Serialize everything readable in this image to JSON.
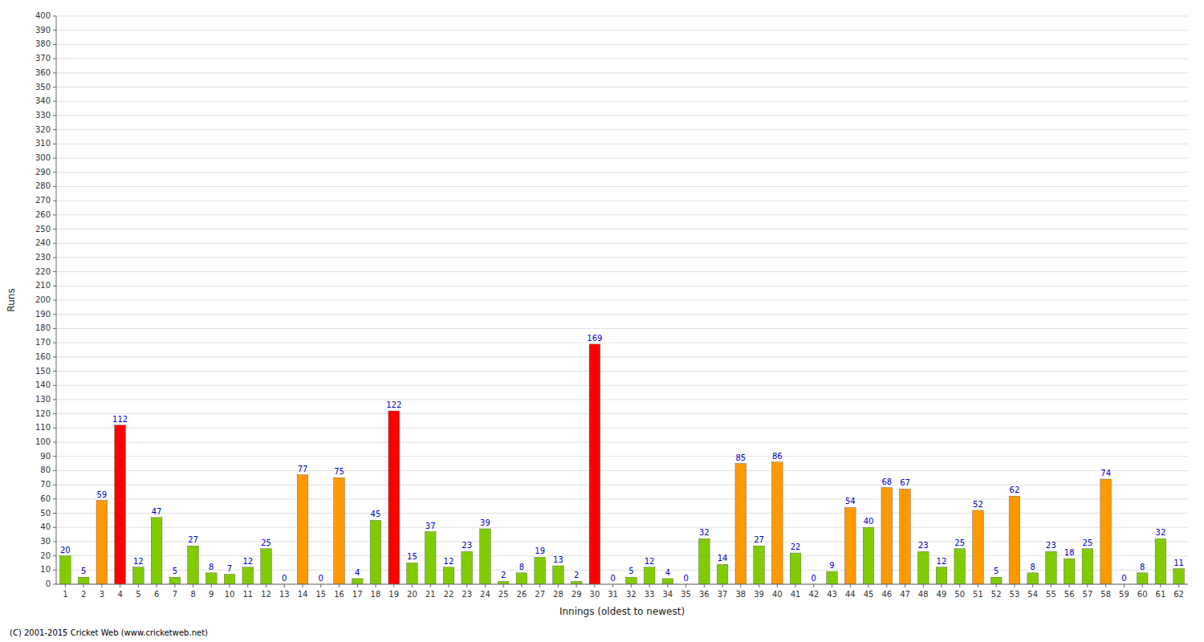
{
  "chart_data": {
    "type": "bar",
    "xlabel": "Innings (oldest to newest)",
    "ylabel": "Runs",
    "annotations": [
      "(C) 2001-2015 Cricket Web (www.cricketweb.net)"
    ],
    "categories": [
      "1",
      "2",
      "3",
      "4",
      "5",
      "6",
      "7",
      "8",
      "9",
      "10",
      "11",
      "12",
      "13",
      "14",
      "15",
      "16",
      "17",
      "18",
      "19",
      "20",
      "21",
      "22",
      "23",
      "24",
      "25",
      "26",
      "27",
      "28",
      "29",
      "30",
      "31",
      "32",
      "33",
      "34",
      "35",
      "36",
      "37",
      "38",
      "39",
      "40",
      "41",
      "42",
      "43",
      "44",
      "45",
      "46",
      "47",
      "48",
      "49",
      "50",
      "51",
      "52",
      "53",
      "54",
      "55",
      "56",
      "57",
      "58",
      "59",
      "60",
      "61",
      "62"
    ],
    "values": [
      20,
      5,
      59,
      112,
      12,
      47,
      5,
      27,
      8,
      7,
      12,
      25,
      0,
      77,
      0,
      75,
      4,
      45,
      122,
      15,
      37,
      12,
      23,
      39,
      2,
      8,
      19,
      13,
      2,
      169,
      0,
      5,
      12,
      4,
      0,
      32,
      14,
      85,
      27,
      86,
      22,
      0,
      9,
      54,
      40,
      68,
      67,
      23,
      12,
      25,
      52,
      5,
      62,
      8,
      23,
      18,
      25,
      74,
      0,
      8,
      32,
      11
    ],
    "colors": [
      "#80cc00",
      "#80cc00",
      "#ff9900",
      "#ff0000",
      "#80cc00",
      "#80cc00",
      "#80cc00",
      "#80cc00",
      "#80cc00",
      "#80cc00",
      "#80cc00",
      "#80cc00",
      "#80cc00",
      "#ff9900",
      "#80cc00",
      "#ff9900",
      "#80cc00",
      "#80cc00",
      "#ff0000",
      "#80cc00",
      "#80cc00",
      "#80cc00",
      "#80cc00",
      "#80cc00",
      "#80cc00",
      "#80cc00",
      "#80cc00",
      "#80cc00",
      "#80cc00",
      "#ff0000",
      "#80cc00",
      "#80cc00",
      "#80cc00",
      "#80cc00",
      "#80cc00",
      "#80cc00",
      "#80cc00",
      "#ff9900",
      "#80cc00",
      "#ff9900",
      "#80cc00",
      "#80cc00",
      "#80cc00",
      "#ff9900",
      "#80cc00",
      "#ff9900",
      "#ff9900",
      "#80cc00",
      "#80cc00",
      "#80cc00",
      "#ff9900",
      "#80cc00",
      "#ff9900",
      "#80cc00",
      "#80cc00",
      "#80cc00",
      "#80cc00",
      "#ff9900",
      "#80cc00",
      "#80cc00",
      "#80cc00",
      "#80cc00"
    ],
    "ylim": [
      0,
      400
    ],
    "yticks": [
      0,
      10,
      20,
      30,
      40,
      50,
      60,
      70,
      80,
      90,
      100,
      110,
      120,
      130,
      140,
      150,
      160,
      170,
      180,
      190,
      200,
      210,
      220,
      230,
      240,
      250,
      260,
      270,
      280,
      290,
      300,
      310,
      320,
      330,
      340,
      350,
      360,
      370,
      380,
      390,
      400
    ],
    "grid": true,
    "data_labels": true
  }
}
